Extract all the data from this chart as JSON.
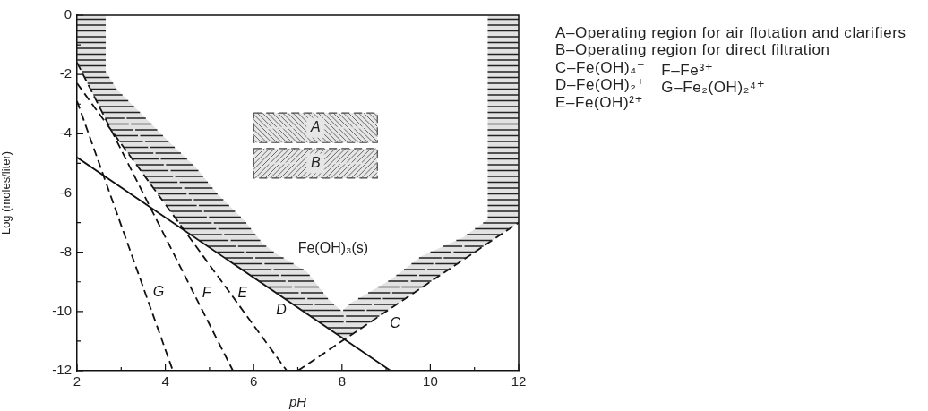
{
  "chart_data": {
    "type": "line",
    "xlabel": "pH",
    "ylabel": "Log (moles/liter)",
    "marker": "none",
    "xlim": [
      2,
      12
    ],
    "ylim": [
      -12,
      0
    ],
    "xticks": [
      2,
      {
        "value": 3,
        "label": null
      },
      4,
      {
        "value": 5,
        "label": null
      },
      6,
      {
        "value": 7,
        "label": null
      },
      8,
      {
        "value": 9,
        "label": null
      },
      10,
      {
        "value": 11,
        "label": null
      },
      12
    ],
    "yticks": [
      -12,
      {
        "value": -11,
        "label": null
      },
      -10,
      {
        "value": -9,
        "label": null
      },
      -8,
      {
        "value": -7,
        "label": null
      },
      -6,
      {
        "value": -5,
        "label": null
      },
      -4,
      {
        "value": -3,
        "label": null
      },
      -2,
      {
        "value": -1,
        "label": null
      },
      0
    ],
    "annotations": [
      "A–Operating region for air flotation and clarifiers",
      "B–Operating region for direct filtration",
      "C–Fe(OH)₄⁻",
      "D–Fe(OH)₂⁺",
      "E–Fe(OH)²⁺",
      "F–Fe³⁺",
      "G–Fe₂(OH)₂⁴⁺",
      "Fe(OH)₃(s)"
    ],
    "series": [
      {
        "color": "#222222",
        "x": [
          2,
          2.65,
          2.65,
          2.78,
          2.9,
          3.54,
          4.1,
          4.44,
          4.67,
          5.16,
          5.8,
          6.2,
          6.46,
          7.2,
          7.7,
          8.0,
          8.06,
          8.18,
          9.1,
          9.8,
          10.74,
          11.3,
          11.3,
          12
        ],
        "values": [
          null,
          null,
          null,
          null,
          null,
          null,
          null,
          null,
          null,
          null,
          null,
          null,
          null,
          null,
          null,
          null,
          null,
          null,
          null,
          null,
          null,
          null,
          null,
          null
        ],
        "lower": [
          -1.6,
          -3.51,
          -3.51,
          -3.89,
          -4.14,
          -5.44,
          -6.58,
          -7.27,
          -7.51,
          -8.0,
          -8.65,
          -9.06,
          -9.32,
          -10.07,
          -10.58,
          -10.88,
          -10.94,
          -10.82,
          -9.9,
          -9.2,
          -8.26,
          -7.7,
          -7.7,
          -7
        ],
        "upper": [
          0,
          0,
          -1.9,
          -2.21,
          -2.5,
          -3.45,
          -4.3,
          -4.78,
          -5.1,
          -6,
          -6.95,
          -7.7,
          -8,
          -8.65,
          -9.6,
          -10,
          -9.91,
          -9.73,
          -8.93,
          -8.13,
          -7.5,
          -6.9,
          0,
          0
        ]
      },
      {
        "name": "A",
        "color": "#444444",
        "line_style": "dashed",
        "x": [
          6,
          8.8
        ],
        "values": [
          null,
          null
        ],
        "lower": [
          -4.3,
          -4.3
        ],
        "upper": [
          -3.3,
          -3.3
        ]
      },
      {
        "name": "B",
        "color": "#444444",
        "line_style": "dashed",
        "x": [
          6,
          8.8
        ],
        "values": [
          null,
          null
        ],
        "lower": [
          -5.5,
          -5.5
        ],
        "upper": [
          -4.5,
          -4.5
        ]
      },
      {
        "name": "C",
        "color": "#111111",
        "line_style": "dashed",
        "x": [
          7,
          12
        ],
        "values": [
          -12,
          -7
        ]
      },
      {
        "name": "D",
        "color": "#111111",
        "line_style": "solid",
        "x": [
          2,
          9.1
        ],
        "values": [
          -4.8,
          -12
        ]
      },
      {
        "name": "E",
        "color": "#111111",
        "line_style": "dashed",
        "x": [
          2,
          6.75
        ],
        "values": [
          -2.3,
          -12
        ]
      },
      {
        "name": "F",
        "color": "#111111",
        "line_style": "dashed",
        "x": [
          2,
          5.53
        ],
        "values": [
          -1.6,
          -12
        ]
      },
      {
        "name": "G",
        "color": "#111111",
        "line_style": "dashed",
        "x": [
          2,
          4.17
        ],
        "values": [
          -2.9,
          -12
        ]
      }
    ]
  }
}
